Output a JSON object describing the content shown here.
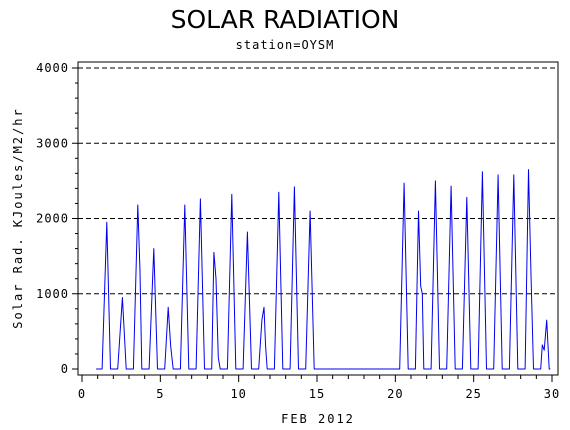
{
  "chart_data": {
    "type": "line",
    "title": "SOLAR RADIATION",
    "subtitle": "station=OYSM",
    "xlabel": "FEB 2012",
    "ylabel": "Solar Rad. KJoules/M2/hr",
    "xlim": [
      0,
      30
    ],
    "ylim": [
      0,
      4000
    ],
    "x_ticks": [
      0,
      5,
      10,
      15,
      20,
      25,
      30
    ],
    "y_ticks": [
      0,
      1000,
      2000,
      3000,
      4000
    ],
    "grid": "horizontal-dashed",
    "line_color": "#0000ee",
    "days": [
      {
        "day": 1,
        "peaks": [
          [
            1.58,
            1950
          ]
        ]
      },
      {
        "day": 2,
        "peaks": [
          [
            2.58,
            950
          ]
        ]
      },
      {
        "day": 3,
        "peaks": [
          [
            3.56,
            2180
          ],
          [
            3.7,
            1300
          ]
        ]
      },
      {
        "day": 4,
        "peaks": [
          [
            4.58,
            1600
          ]
        ]
      },
      {
        "day": 5,
        "peaks": [
          [
            5.5,
            820
          ],
          [
            5.66,
            300
          ]
        ]
      },
      {
        "day": 6,
        "peaks": [
          [
            6.56,
            2180
          ]
        ]
      },
      {
        "day": 7,
        "peaks": [
          [
            7.56,
            2260
          ]
        ]
      },
      {
        "day": 8,
        "peaks": [
          [
            8.42,
            1550
          ],
          [
            8.55,
            1200
          ],
          [
            8.7,
            150
          ]
        ]
      },
      {
        "day": 9,
        "peaks": [
          [
            9.56,
            2320
          ]
        ]
      },
      {
        "day": 10,
        "peaks": [
          [
            10.56,
            1820
          ]
        ]
      },
      {
        "day": 11,
        "peaks": [
          [
            11.48,
            650
          ],
          [
            11.62,
            820
          ],
          [
            11.72,
            300
          ]
        ]
      },
      {
        "day": 12,
        "peaks": [
          [
            12.56,
            2350
          ]
        ]
      },
      {
        "day": 13,
        "peaks": [
          [
            13.56,
            2420
          ]
        ]
      },
      {
        "day": 14,
        "peaks": [
          [
            14.56,
            2100
          ]
        ]
      },
      {
        "day": 15,
        "peaks": []
      },
      {
        "day": 16,
        "peaks": []
      },
      {
        "day": 17,
        "peaks": []
      },
      {
        "day": 18,
        "peaks": []
      },
      {
        "day": 19,
        "peaks": []
      },
      {
        "day": 20,
        "peaks": [
          [
            20.56,
            2470
          ]
        ]
      },
      {
        "day": 21,
        "peaks": [
          [
            21.48,
            2100
          ],
          [
            21.62,
            1100
          ],
          [
            21.72,
            1000
          ]
        ]
      },
      {
        "day": 22,
        "peaks": [
          [
            22.56,
            2500
          ]
        ]
      },
      {
        "day": 23,
        "peaks": [
          [
            23.56,
            2430
          ]
        ]
      },
      {
        "day": 24,
        "peaks": [
          [
            24.56,
            2280
          ]
        ]
      },
      {
        "day": 25,
        "peaks": [
          [
            25.56,
            2620
          ]
        ]
      },
      {
        "day": 26,
        "peaks": [
          [
            26.56,
            2580
          ]
        ]
      },
      {
        "day": 27,
        "peaks": [
          [
            27.56,
            2580
          ]
        ]
      },
      {
        "day": 28,
        "peaks": [
          [
            28.5,
            2650
          ],
          [
            28.66,
            1250
          ]
        ]
      },
      {
        "day": 29,
        "peaks": [
          [
            29.38,
            320
          ],
          [
            29.5,
            250
          ],
          [
            29.66,
            650
          ]
        ]
      }
    ]
  }
}
